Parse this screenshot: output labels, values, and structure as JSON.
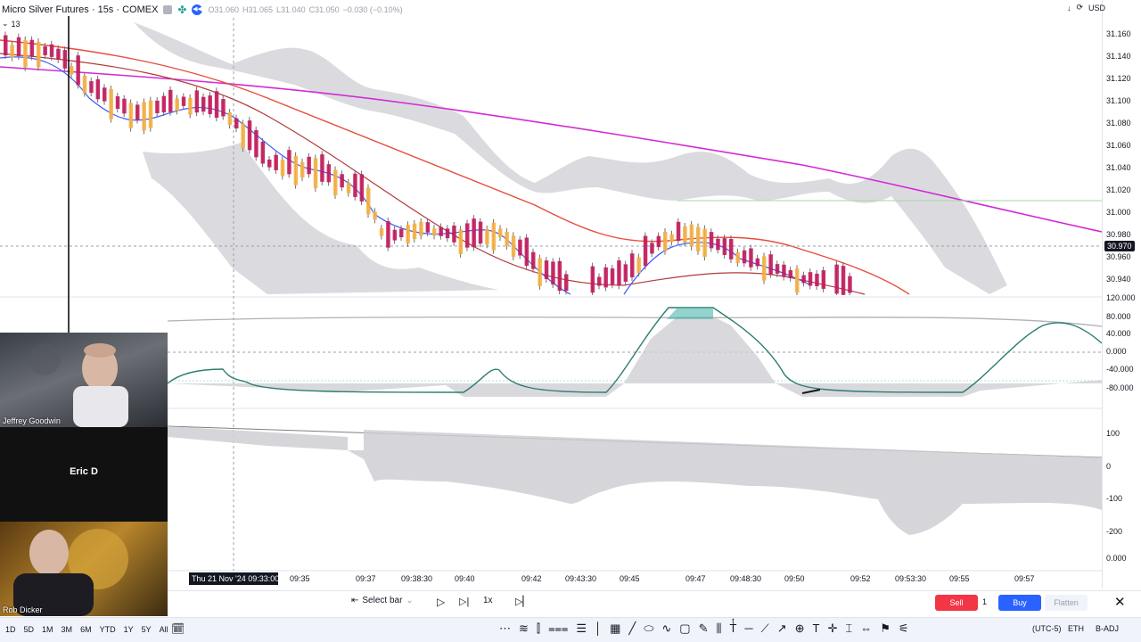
{
  "legend": {
    "title": "Micro Silver Futures · 15s · COMEX",
    "open": "O31.060",
    "high": "H31.065",
    "low": "L31.040",
    "close": "C31.050",
    "change": "−0.030 (−0.10%)",
    "counter": "13"
  },
  "price_axis": {
    "currency": "USD",
    "current_price": "30.970",
    "labels": [
      "31.160",
      "31.140",
      "31.120",
      "31.100",
      "31.080",
      "31.060",
      "31.040",
      "31.020",
      "31.000",
      "30.980",
      "30.960",
      "30.940"
    ],
    "osc_labels": [
      "120.000",
      "80.000",
      "40.000",
      "0.000",
      "-40.000",
      "-80.000"
    ],
    "vol_labels": [
      "100",
      "0",
      "-100",
      "-200",
      "0.000"
    ]
  },
  "time_axis": {
    "cursor": "Thu 21 Nov '24   09:33:00",
    "labels": [
      "09:35",
      "09:37",
      "09:38:30",
      "09:40",
      "09:42",
      "09:43:30",
      "09:45",
      "09:47",
      "09:48:30",
      "09:50",
      "09:52",
      "09:53:30",
      "09:55",
      "09:57"
    ]
  },
  "video": {
    "participant1": "Jeffrey Goodwin",
    "participant2": "Eric D",
    "participant3": "Rob Dicker"
  },
  "trade_bar": {
    "select_bar": "Select bar",
    "speed": "1x",
    "sell": "Sell",
    "qty": "1",
    "buy": "Buy",
    "flatten": "Flatten"
  },
  "tool_bar": {
    "periods": [
      "1D",
      "5D",
      "1M",
      "3M",
      "6M",
      "YTD",
      "1Y",
      "5Y",
      "All"
    ],
    "timezone": "(UTC-5)",
    "session": "ETH",
    "adjust": "B-ADJ"
  },
  "colors": {
    "up": "#26a69a",
    "down": "#ef5350",
    "bear_candle": "#c2185b",
    "bull_candle": "#f5b041",
    "ma_purple": "#d22ad5",
    "ma_red": "#e74c3c",
    "cloud": "#cfcfd4"
  }
}
